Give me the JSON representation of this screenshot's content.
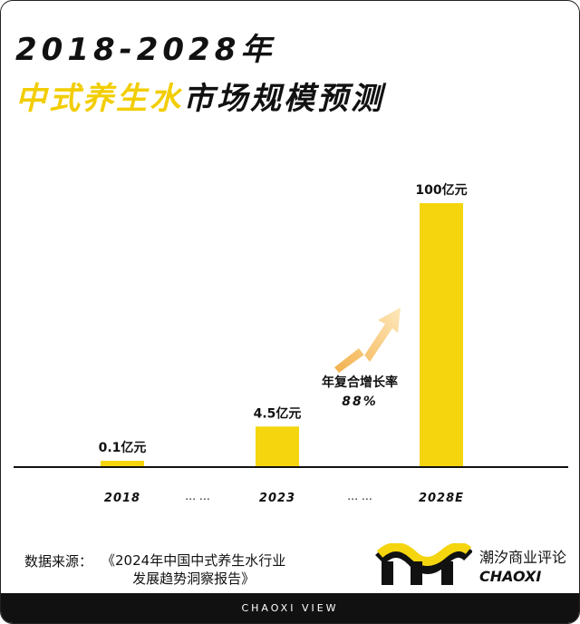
{
  "header": {
    "title_line1": "2018-2028年",
    "title_line2_highlight": "中式养生水",
    "title_line2_rest": "市场规模预测"
  },
  "chart_data": {
    "type": "bar",
    "categories": [
      "2018",
      "2023",
      "2028E"
    ],
    "values": [
      0.1,
      4.5,
      100
    ],
    "value_labels": [
      "0.1亿元",
      "4.5亿元",
      "100亿元"
    ],
    "ellipsis_labels": [
      "… …",
      "… …"
    ],
    "annotation": {
      "label": "年复合增长率",
      "value": "88%"
    },
    "colors": {
      "bar": "#f5d50d",
      "axis": "#111111",
      "arrow": "#f7c97a"
    }
  },
  "source": {
    "label": "数据来源：",
    "ref_line1": "《2024年中国中式养生水行业",
    "ref_line2": "发展趋势洞察报告》"
  },
  "brand": {
    "cn_name": "潮汐商业评论",
    "en_name": "CHAOXI"
  },
  "footer": {
    "text": "CHAOXI VIEW"
  }
}
